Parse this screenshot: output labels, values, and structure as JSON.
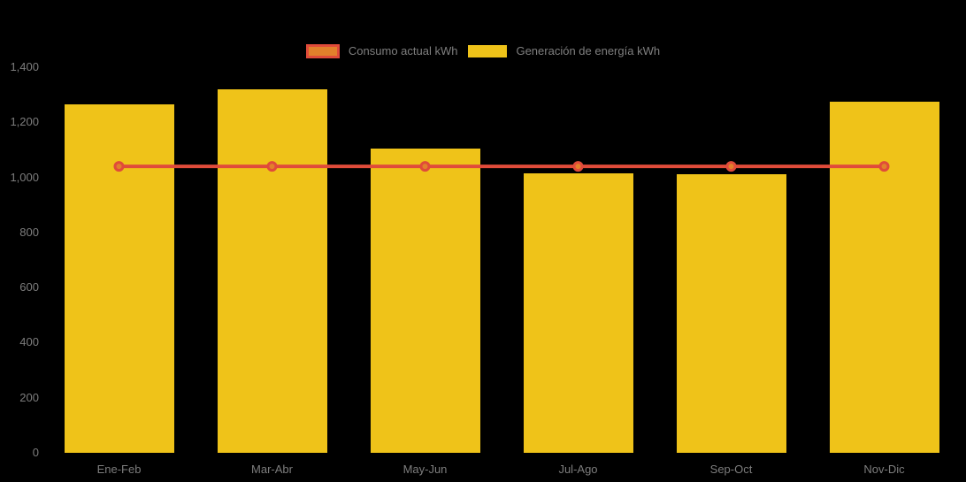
{
  "chart_data": {
    "type": "bar",
    "title": "",
    "categories": [
      "Ene-Feb",
      "Mar-Abr",
      "May-Jun",
      "Jul-Ago",
      "Sep-Oct",
      "Nov-Dic"
    ],
    "series": [
      {
        "name": "Consumo actual kWh",
        "type": "line",
        "values": [
          1040,
          1040,
          1040,
          1040,
          1040,
          1040
        ],
        "color": "#e04b3a",
        "marker_fill": "#e2802b"
      },
      {
        "name": "Generación de energía kWh",
        "type": "bar",
        "values": [
          1265,
          1320,
          1105,
          1015,
          1010,
          1275
        ],
        "color": "#efc319"
      }
    ],
    "xlabel": "",
    "ylabel": "",
    "ylim": [
      0,
      1400
    ],
    "ytick_step": 200,
    "ytick_labels": [
      "0",
      "200",
      "400",
      "600",
      "800",
      "1,000",
      "1,200",
      "1,400"
    ],
    "grid": false,
    "legend_position": "top-center",
    "background_color": "#000000",
    "label_color": "#7d7d7d"
  }
}
